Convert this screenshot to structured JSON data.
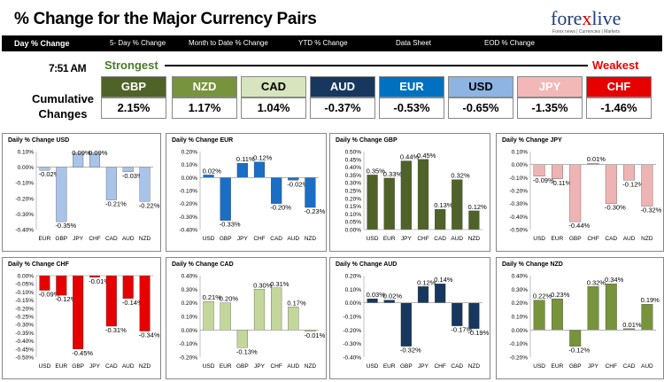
{
  "header": {
    "title": "% Change for the Major Currency Pairs",
    "logo_main": "fore",
    "logo_x": "x",
    "logo_end": "live",
    "logo_sub": "Forex news | Currencies | Markets"
  },
  "tabs": [
    "Day % Change",
    "5- Day % Change",
    "Month to Date % Change",
    "YTD % Change",
    "Data Sheet",
    "EOD % Change"
  ],
  "summary": {
    "time": "7:51 AM",
    "strongest": "Strongest",
    "weakest": "Weakest",
    "label_line1": "Cumulative",
    "label_line2": "Changes",
    "currencies": [
      {
        "code": "GBP",
        "value": "2.15%",
        "bg": "#4f6228",
        "fg": "#ffffff"
      },
      {
        "code": "NZD",
        "value": "1.17%",
        "bg": "#77933c",
        "fg": "#ffffff"
      },
      {
        "code": "CAD",
        "value": "1.04%",
        "bg": "#d7e4bd",
        "fg": "#000000"
      },
      {
        "code": "AUD",
        "value": "-0.37%",
        "bg": "#17375e",
        "fg": "#ffffff"
      },
      {
        "code": "EUR",
        "value": "-0.53%",
        "bg": "#0070c0",
        "fg": "#ffffff"
      },
      {
        "code": "USD",
        "value": "-0.65%",
        "bg": "#8db4e2",
        "fg": "#000000"
      },
      {
        "code": "JPY",
        "value": "-1.35%",
        "bg": "#f2b8b8",
        "fg": "#ffffff"
      },
      {
        "code": "CHF",
        "value": "-1.46%",
        "bg": "#e60000",
        "fg": "#ffffff"
      }
    ]
  },
  "chart_data": [
    {
      "type": "bar",
      "title": "Daily % Change USD",
      "categories": [
        "EUR",
        "GBP",
        "JPY",
        "CHF",
        "CAD",
        "AUD",
        "NZD"
      ],
      "values": [
        -0.02,
        -0.35,
        0.09,
        0.09,
        -0.21,
        -0.03,
        -0.22
      ],
      "labels": [
        "-0.02%",
        "-0.35%",
        "0.09%",
        "0.09%",
        "-0.21%",
        "-0.03%",
        "-0.22%"
      ],
      "ylim": [
        -0.4,
        0.1
      ],
      "yticks": [
        "0.10%",
        "0.00%",
        "-0.10%",
        "-0.20%",
        "-0.30%",
        "-0.40%"
      ],
      "color": "#a9c4e8"
    },
    {
      "type": "bar",
      "title": "Daily % Change EUR",
      "categories": [
        "USD",
        "GBP",
        "JPY",
        "CHF",
        "CAD",
        "AUD",
        "NZD"
      ],
      "values": [
        0.02,
        -0.33,
        0.11,
        0.12,
        -0.2,
        -0.02,
        -0.23
      ],
      "labels": [
        "0.02%",
        "-0.33%",
        "0.11%",
        "0.12%",
        "-0.20%",
        "-0.02%",
        "-0.23%"
      ],
      "ylim": [
        -0.4,
        0.2
      ],
      "yticks": [
        "0.20%",
        "0.10%",
        "0.00%",
        "-0.10%",
        "-0.20%",
        "-0.30%",
        "-0.40%"
      ],
      "color": "#1a6fc4"
    },
    {
      "type": "bar",
      "title": "Daily % Change GBP",
      "categories": [
        "USD",
        "EUR",
        "JPY",
        "CHF",
        "CAD",
        "AUD",
        "NZD"
      ],
      "values": [
        0.35,
        0.33,
        0.44,
        0.45,
        0.13,
        0.32,
        0.12
      ],
      "labels": [
        "0.35%",
        "0.33%",
        "0.44%",
        "0.45%",
        "0.13%",
        "0.32%",
        "0.12%"
      ],
      "ylim": [
        0,
        0.5
      ],
      "yticks": [
        "0.50%",
        "0.45%",
        "0.40%",
        "0.35%",
        "0.30%",
        "0.25%",
        "0.20%",
        "0.15%",
        "0.10%",
        "0.05%",
        "0.00%"
      ],
      "color": "#4f6228"
    },
    {
      "type": "bar",
      "title": "Daily % Change JPY",
      "categories": [
        "USD",
        "EUR",
        "GBP",
        "CHF",
        "CAD",
        "AUD",
        "NZD"
      ],
      "values": [
        -0.09,
        -0.11,
        -0.44,
        0.01,
        -0.3,
        -0.12,
        -0.32
      ],
      "labels": [
        "-0.09%",
        "-0.11%",
        "-0.44%",
        "0.01%",
        "-0.30%",
        "-0.12%",
        "-0.32%"
      ],
      "ylim": [
        -0.5,
        0.1
      ],
      "yticks": [
        "0.10%",
        "0.00%",
        "-0.10%",
        "-0.20%",
        "-0.30%",
        "-0.40%",
        "-0.50%"
      ],
      "color": "#eeb4b4"
    },
    {
      "type": "bar",
      "title": "Daily % Change CHF",
      "categories": [
        "USD",
        "EUR",
        "GBP",
        "JPY",
        "CAD",
        "AUD",
        "NZD"
      ],
      "values": [
        -0.09,
        -0.12,
        -0.45,
        -0.01,
        -0.31,
        -0.14,
        -0.34
      ],
      "labels": [
        "-0.09%",
        "-0.12%",
        "-0.45%",
        "-0.01%",
        "-0.31%",
        "-0.14%",
        "-0.34%"
      ],
      "ylim": [
        -0.5,
        0
      ],
      "yticks": [
        "0.00%",
        "-0.05%",
        "-0.10%",
        "-0.15%",
        "-0.20%",
        "-0.25%",
        "-0.30%",
        "-0.35%",
        "-0.40%",
        "-0.45%",
        "-0.50%"
      ],
      "color": "#e60000"
    },
    {
      "type": "bar",
      "title": "Daily % Change CAD",
      "categories": [
        "USD",
        "EUR",
        "GBP",
        "JPY",
        "CHF",
        "AUD",
        "NZD"
      ],
      "values": [
        0.21,
        0.2,
        -0.13,
        0.3,
        0.31,
        0.17,
        -0.01
      ],
      "labels": [
        "0.21%",
        "0.20%",
        "-0.13%",
        "0.30%",
        "0.31%",
        "0.17%",
        "-0.01%"
      ],
      "ylim": [
        -0.2,
        0.4
      ],
      "yticks": [
        "0.40%",
        "0.30%",
        "0.20%",
        "0.10%",
        "0.00%",
        "-0.10%",
        "-0.20%"
      ],
      "color": "#c4d79b"
    },
    {
      "type": "bar",
      "title": "Daily % Change AUD",
      "categories": [
        "USD",
        "EUR",
        "GBP",
        "JPY",
        "CHF",
        "CAD",
        "NZD"
      ],
      "values": [
        0.03,
        0.02,
        -0.32,
        0.12,
        0.14,
        -0.17,
        -0.19
      ],
      "labels": [
        "0.03%",
        "0.02%",
        "-0.32%",
        "0.12%",
        "0.14%",
        "-0.17%",
        "-0.19%"
      ],
      "ylim": [
        -0.4,
        0.2
      ],
      "yticks": [
        "0.20%",
        "0.10%",
        "0.00%",
        "-0.10%",
        "-0.20%",
        "-0.30%",
        "-0.40%"
      ],
      "color": "#17375e"
    },
    {
      "type": "bar",
      "title": "Daily % Change NZD",
      "categories": [
        "USD",
        "EUR",
        "GBP",
        "JPY",
        "CHF",
        "CAD",
        "AUD"
      ],
      "values": [
        0.22,
        0.23,
        -0.12,
        0.32,
        0.34,
        0.01,
        0.19
      ],
      "labels": [
        "0.22%",
        "0.23%",
        "-0.12%",
        "0.32%",
        "0.34%",
        "0.01%",
        "0.19%"
      ],
      "ylim": [
        -0.2,
        0.4
      ],
      "yticks": [
        "0.40%",
        "0.30%",
        "0.20%",
        "0.10%",
        "0.00%",
        "-0.10%",
        "-0.20%"
      ],
      "color": "#77933c"
    }
  ]
}
